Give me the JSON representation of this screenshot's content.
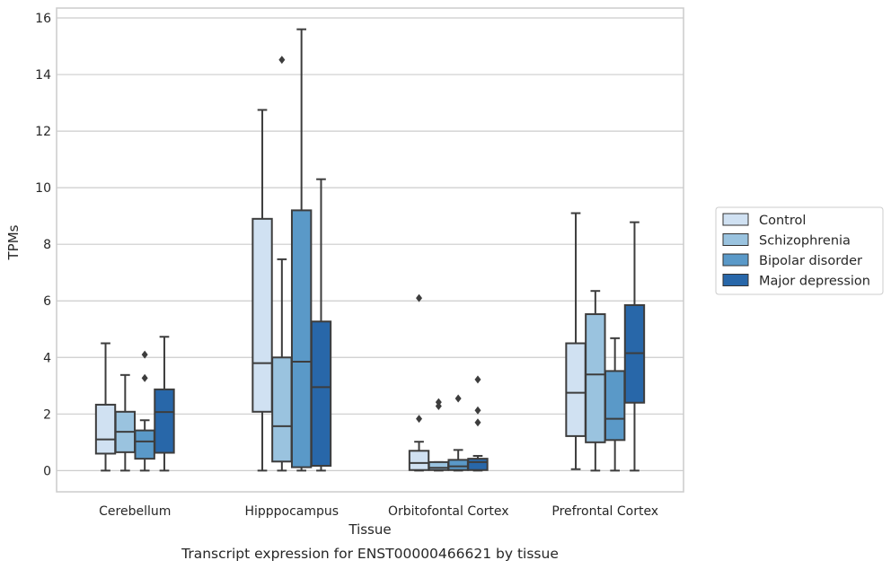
{
  "chart_data": {
    "type": "box",
    "title": "",
    "caption": "Transcript expression for ENST00000466621 by tissue",
    "xlabel": "Tissue",
    "ylabel": "TPMs",
    "ylim": [
      -0.75,
      16.35
    ],
    "yticks": [
      0,
      2,
      4,
      6,
      8,
      10,
      12,
      14,
      16
    ],
    "grid": "horizontal",
    "legend_position": "right",
    "categories": [
      "Cerebellum",
      "Hipppocampus",
      "Orbitofontal Cortex",
      "Prefrontal Cortex"
    ],
    "series": [
      {
        "name": "Control",
        "color": "#d0e1f2",
        "boxes": [
          {
            "whislo": 0.0,
            "q1": 0.6,
            "med": 1.1,
            "q3": 2.33,
            "whishi": 4.5,
            "fliers": []
          },
          {
            "whislo": 0.0,
            "q1": 2.08,
            "med": 3.8,
            "q3": 8.9,
            "whishi": 12.75,
            "fliers": []
          },
          {
            "whislo": 0.0,
            "q1": 0.02,
            "med": 0.27,
            "q3": 0.7,
            "whishi": 1.02,
            "fliers": [
              1.83,
              6.1
            ]
          },
          {
            "whislo": 0.05,
            "q1": 1.22,
            "med": 2.75,
            "q3": 4.5,
            "whishi": 9.1,
            "fliers": []
          }
        ]
      },
      {
        "name": "Schizophrenia",
        "color": "#9ac3df",
        "boxes": [
          {
            "whislo": 0.0,
            "q1": 0.65,
            "med": 1.37,
            "q3": 2.08,
            "whishi": 3.38,
            "fliers": []
          },
          {
            "whislo": 0.0,
            "q1": 0.32,
            "med": 1.57,
            "q3": 4.0,
            "whishi": 7.47,
            "fliers": [
              14.52
            ]
          },
          {
            "whislo": 0.0,
            "q1": 0.02,
            "med": 0.1,
            "q3": 0.3,
            "whishi": 0.3,
            "fliers": [
              2.28,
              2.42
            ]
          },
          {
            "whislo": 0.0,
            "q1": 1.0,
            "med": 3.4,
            "q3": 5.53,
            "whishi": 6.35,
            "fliers": []
          }
        ]
      },
      {
        "name": "Bipolar disorder",
        "color": "#5a99c8",
        "boxes": [
          {
            "whislo": 0.0,
            "q1": 0.42,
            "med": 1.03,
            "q3": 1.42,
            "whishi": 1.78,
            "fliers": [
              3.27,
              4.1
            ]
          },
          {
            "whislo": 0.0,
            "q1": 0.12,
            "med": 3.85,
            "q3": 9.2,
            "whishi": 15.6,
            "fliers": []
          },
          {
            "whislo": 0.0,
            "q1": 0.02,
            "med": 0.15,
            "q3": 0.38,
            "whishi": 0.73,
            "fliers": [
              2.55
            ]
          },
          {
            "whislo": 0.0,
            "q1": 1.08,
            "med": 1.83,
            "q3": 3.52,
            "whishi": 4.68,
            "fliers": []
          }
        ]
      },
      {
        "name": "Major depression",
        "color": "#2867a9",
        "boxes": [
          {
            "whislo": 0.0,
            "q1": 0.63,
            "med": 2.07,
            "q3": 2.87,
            "whishi": 4.73,
            "fliers": []
          },
          {
            "whislo": 0.0,
            "q1": 0.17,
            "med": 2.95,
            "q3": 5.27,
            "whishi": 10.3,
            "fliers": []
          },
          {
            "whislo": 0.0,
            "q1": 0.02,
            "med": 0.3,
            "q3": 0.42,
            "whishi": 0.52,
            "fliers": [
              1.7,
              2.13,
              3.22
            ]
          },
          {
            "whislo": 0.0,
            "q1": 2.4,
            "med": 4.15,
            "q3": 5.85,
            "whishi": 8.78,
            "fliers": []
          }
        ]
      }
    ],
    "colors": {
      "grid": "#cccccc",
      "frame": "#cccccc",
      "line": "#3d3d3d",
      "text": "#262626"
    }
  }
}
